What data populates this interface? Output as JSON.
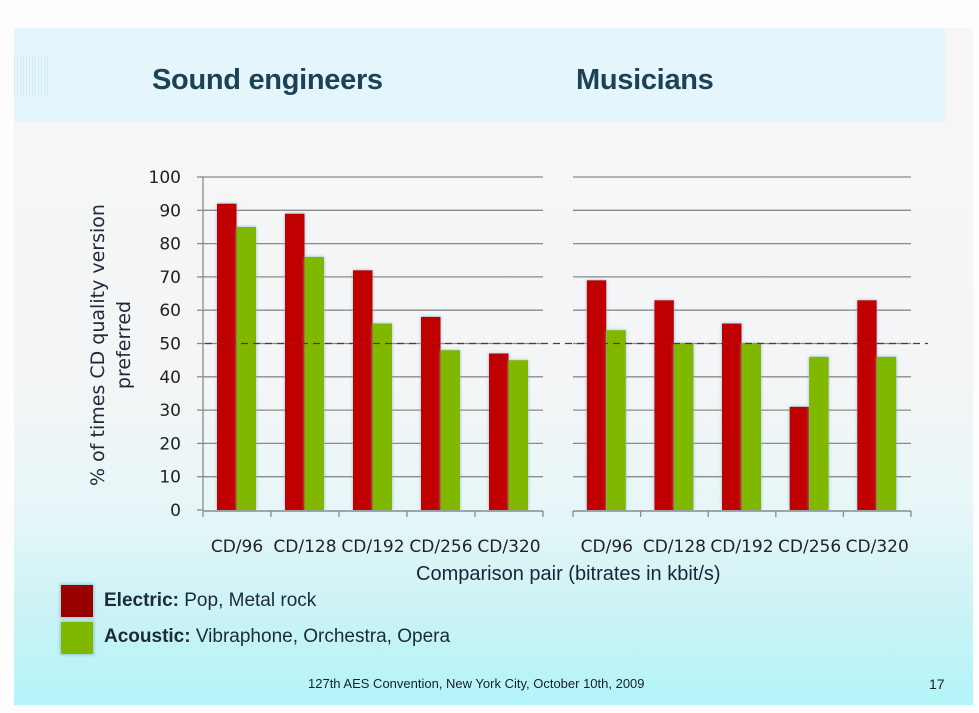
{
  "slide": {
    "footer_text": "127th AES Convention, New York City, October 10th, 2009",
    "page_number": "17"
  },
  "legend": [
    {
      "label_bold": "Electric:",
      "label_rest": " Pop, Metal rock",
      "color": "#c00000"
    },
    {
      "label_bold": "Acoustic:",
      "label_rest": " Vibraphone, Orchestra, Opera",
      "color": "#80b800"
    }
  ],
  "chart_data": [
    {
      "type": "bar",
      "title": "Sound engineers",
      "xlabel": "Comparison pair (bitrates in kbit/s)",
      "ylabel_lines": [
        "% of times CD quality version",
        "preferred"
      ],
      "ylim": [
        0,
        100
      ],
      "yticks": [
        0,
        10,
        20,
        30,
        40,
        50,
        60,
        70,
        80,
        90,
        100
      ],
      "grid": true,
      "reference_line": 50,
      "categories": [
        "CD/96",
        "CD/128",
        "CD/192",
        "CD/256",
        "CD/320"
      ],
      "series": [
        {
          "name": "Electric",
          "values": [
            92,
            89,
            72,
            58,
            47
          ]
        },
        {
          "name": "Acoustic",
          "values": [
            85,
            76,
            56,
            48,
            45
          ]
        }
      ]
    },
    {
      "type": "bar",
      "title": "Musicians",
      "xlabel": "Comparison pair (bitrates in kbit/s)",
      "ylim": [
        0,
        100
      ],
      "grid": true,
      "reference_line": 50,
      "categories": [
        "CD/96",
        "CD/128",
        "CD/192",
        "CD/256",
        "CD/320"
      ],
      "series": [
        {
          "name": "Electric",
          "values": [
            69,
            63,
            56,
            31,
            63
          ]
        },
        {
          "name": "Acoustic",
          "values": [
            54,
            50,
            50,
            46,
            46
          ]
        }
      ]
    }
  ]
}
